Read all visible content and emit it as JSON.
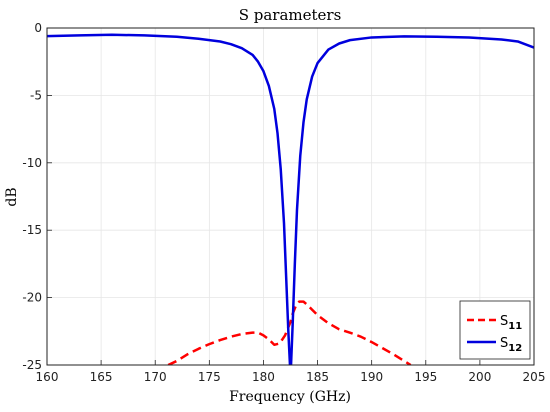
{
  "chart_data": {
    "type": "line",
    "title": "S parameters",
    "xlabel": "Frequency (GHz)",
    "ylabel": "dB",
    "xlim": [
      160,
      205
    ],
    "ylim": [
      -25,
      0
    ],
    "xticks": [
      160,
      165,
      170,
      175,
      180,
      185,
      190,
      195,
      200,
      205
    ],
    "yticks": [
      0,
      -5,
      -10,
      -15,
      -20,
      -25
    ],
    "grid": true,
    "legend_position": "bottom-right",
    "series": [
      {
        "name": "S11",
        "name_main": "S",
        "name_sub": "11",
        "color": "#ff0000",
        "style": "dashed",
        "x": [
          171.2,
          172,
          173,
          174,
          175,
          176,
          177,
          178,
          179,
          179.5,
          180,
          180.5,
          181,
          181.5,
          182,
          182.3,
          182.5,
          182.7,
          183,
          183.3,
          183.7,
          184,
          184.5,
          185,
          186,
          187,
          188,
          189,
          190,
          191,
          192,
          193,
          193.6
        ],
        "y": [
          -25,
          -24.7,
          -24.2,
          -23.8,
          -23.45,
          -23.15,
          -22.9,
          -22.7,
          -22.6,
          -22.6,
          -22.8,
          -23.1,
          -23.5,
          -23.4,
          -22.8,
          -22.2,
          -21.8,
          -21.2,
          -20.6,
          -20.3,
          -20.3,
          -20.5,
          -20.9,
          -21.3,
          -21.9,
          -22.35,
          -22.6,
          -22.9,
          -23.3,
          -23.75,
          -24.2,
          -24.7,
          -25
        ]
      },
      {
        "name": "S12",
        "name_main": "S",
        "name_sub": "12",
        "color": "#0000dd",
        "style": "solid",
        "x": [
          160,
          163,
          166,
          169,
          172,
          174,
          176,
          177,
          178,
          179,
          179.5,
          180,
          180.5,
          181,
          181.3,
          181.6,
          181.9,
          182.1,
          182.3,
          182.45,
          182.55,
          182.7,
          182.9,
          183.1,
          183.4,
          183.7,
          184,
          184.5,
          185,
          186,
          187,
          188,
          190,
          193,
          196,
          199,
          202,
          203.5,
          205
        ],
        "y": [
          -0.6,
          -0.55,
          -0.5,
          -0.55,
          -0.65,
          -0.8,
          -1.0,
          -1.2,
          -1.5,
          -2.0,
          -2.5,
          -3.2,
          -4.3,
          -6.0,
          -7.8,
          -10.5,
          -14.5,
          -18.5,
          -22.5,
          -25,
          -25,
          -22,
          -17.5,
          -13.5,
          -9.5,
          -7.0,
          -5.3,
          -3.6,
          -2.6,
          -1.6,
          -1.15,
          -0.9,
          -0.7,
          -0.62,
          -0.65,
          -0.7,
          -0.85,
          -1.0,
          -1.45
        ]
      }
    ]
  }
}
